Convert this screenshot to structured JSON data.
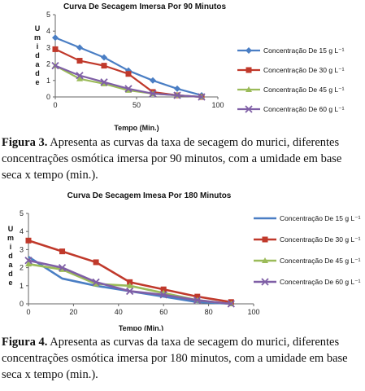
{
  "chart_data": [
    {
      "type": "line",
      "title": "Curva De Secagem Imersa Por 90 Minutos",
      "xlabel": "Tempo (Min.)",
      "ylabel": "U m i d a d e",
      "xlim": [
        0,
        100
      ],
      "ylim": [
        0,
        5
      ],
      "xticks": [
        "0",
        "50",
        "100"
      ],
      "yticks": [
        "0",
        "1",
        "2",
        "3",
        "4",
        "5"
      ],
      "legend_position": "right",
      "x": [
        0,
        15,
        30,
        45,
        60,
        75,
        90
      ],
      "series": [
        {
          "name": "Concentração De 15 g L⁻¹",
          "color": "#4a7ec4",
          "marker": "diamond",
          "values": [
            3.6,
            3.0,
            2.4,
            1.6,
            1.0,
            0.5,
            0.1
          ]
        },
        {
          "name": "Concentração De 30 g L⁻¹",
          "color": "#c0392b",
          "marker": "square",
          "values": [
            2.9,
            2.2,
            1.9,
            1.4,
            0.3,
            0.1,
            0.0
          ]
        },
        {
          "name": "Concentração De 45 g L⁻¹",
          "color": "#9bbb59",
          "marker": "triangle",
          "values": [
            1.9,
            1.1,
            0.8,
            0.4,
            0.2,
            0.1,
            0.0
          ]
        },
        {
          "name": "Concentração De 60 g L⁻¹",
          "color": "#7f5fa6",
          "marker": "x",
          "values": [
            1.9,
            1.3,
            0.9,
            0.5,
            0.2,
            0.1,
            0.0
          ]
        }
      ]
    },
    {
      "type": "line",
      "title": "Curva De Secagem Imesa Por 180 Minutos",
      "xlabel": "Tempo (Min.)",
      "ylabel": "U m i d a d e",
      "xlim": [
        0,
        100
      ],
      "ylim": [
        0,
        5
      ],
      "xticks": [
        "0",
        "20",
        "40",
        "60",
        "80",
        "100"
      ],
      "yticks": [
        "0",
        "1",
        "2",
        "3",
        "4",
        "5"
      ],
      "legend_position": "right",
      "x": [
        0,
        15,
        30,
        45,
        60,
        75,
        90
      ],
      "series": [
        {
          "name": "Concentração De 15 g L⁻¹",
          "color": "#4a7ec4",
          "marker": "none",
          "values": [
            2.6,
            1.4,
            1.0,
            0.7,
            0.4,
            0.1,
            0.0
          ]
        },
        {
          "name": "Concentração De 30 g L⁻¹",
          "color": "#c0392b",
          "marker": "square",
          "values": [
            3.5,
            2.9,
            2.3,
            1.2,
            0.8,
            0.4,
            0.1
          ]
        },
        {
          "name": "Concentração De 45 g L⁻¹",
          "color": "#9bbb59",
          "marker": "triangle",
          "values": [
            2.2,
            1.9,
            1.1,
            1.0,
            0.6,
            0.2,
            0.0
          ]
        },
        {
          "name": "Concentração De 60 g L⁻¹",
          "color": "#7f5fa6",
          "marker": "x",
          "values": [
            2.4,
            2.0,
            1.2,
            0.7,
            0.5,
            0.2,
            0.0
          ]
        }
      ]
    }
  ],
  "captions": {
    "fig3": {
      "label": "Figura 3.",
      "text": "Apresenta as curvas da taxa de secagem do murici, diferentes concentrações osmótica imersa por 90 minutos, com a umidade em base seca x tempo (min.)."
    },
    "fig4": {
      "label": "Figura 4.",
      "text": "Apresenta as curvas da taxa de secagem do murici, diferentes concentrações osmótica imersa por 180 minutos, com a umidade em base seca x tempo (min.)."
    }
  }
}
